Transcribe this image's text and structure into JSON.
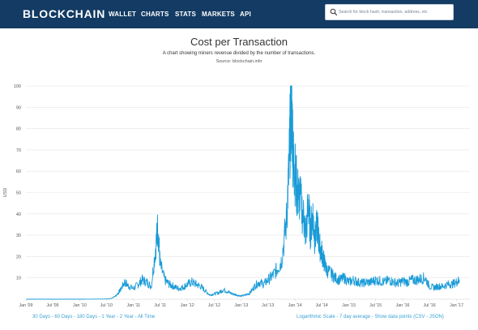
{
  "nav": {
    "brand": "BLOCKCHAIN",
    "items": [
      "WALLET",
      "CHARTS",
      "STATS",
      "MARKETS",
      "API"
    ],
    "search_placeholder": "Search for block hash, transaction, address, etc",
    "search_icon": "search-icon",
    "background_color": "#133b63"
  },
  "page": {
    "title": "Cost per Transaction",
    "subtitle": "A chart showing miners revenue divided by the number of transactions.",
    "source": "Source: blockchain.info"
  },
  "chart_data": {
    "type": "line",
    "ylabel": "USD",
    "xlabel": "",
    "ylim": [
      0,
      100
    ],
    "yticks": [
      "10",
      "20",
      "30",
      "40",
      "50",
      "60",
      "70",
      "80",
      "90",
      "100"
    ],
    "xticks": [
      "Jan '09",
      "Jul '09",
      "Jan '10",
      "Jul '10",
      "Jan '11",
      "Jul '11",
      "Jan '12",
      "Jul '12",
      "Jan '13",
      "Jul '13",
      "Jan '14",
      "Jul '14",
      "Jan '15",
      "Jul '15",
      "Jan '16",
      "Jul '16",
      "Jan '17"
    ],
    "series_color": "#1a9bd7",
    "grid": true,
    "series": [
      {
        "x": [
          "2009-01-03",
          "2009-07-01",
          "2010-01-01",
          "2010-07-01",
          "2010-08-01",
          "2010-09-01",
          "2010-10-01",
          "2010-11-01",
          "2010-12-01",
          "2011-01-01",
          "2011-02-01",
          "2011-03-01",
          "2011-04-01",
          "2011-05-01",
          "2011-06-01",
          "2011-06-15",
          "2011-07-01",
          "2011-08-01",
          "2011-09-01",
          "2011-10-01",
          "2011-11-01",
          "2011-12-01",
          "2012-01-01",
          "2012-02-01",
          "2012-03-01",
          "2012-04-01",
          "2012-05-01",
          "2012-06-01",
          "2012-07-01",
          "2012-08-01",
          "2012-09-01",
          "2012-10-01",
          "2012-11-01",
          "2012-12-01",
          "2013-01-01",
          "2013-02-01",
          "2013-03-01",
          "2013-04-01",
          "2013-05-01",
          "2013-06-01",
          "2013-07-01",
          "2013-08-01",
          "2013-09-01",
          "2013-10-01",
          "2013-11-01",
          "2013-11-20",
          "2013-12-01",
          "2013-12-10",
          "2013-12-20",
          "2014-01-01",
          "2014-01-15",
          "2014-02-01",
          "2014-03-01",
          "2014-03-15",
          "2014-04-01",
          "2014-04-15",
          "2014-05-01",
          "2014-05-15",
          "2014-06-01",
          "2014-06-15",
          "2014-07-01",
          "2014-07-15",
          "2014-08-01",
          "2014-09-01",
          "2014-10-01",
          "2014-11-01",
          "2014-12-01",
          "2015-01-01",
          "2015-02-01",
          "2015-03-01",
          "2015-04-01",
          "2015-05-01",
          "2015-06-01",
          "2015-07-01",
          "2015-08-01",
          "2015-09-01",
          "2015-10-01",
          "2015-11-01",
          "2015-12-01",
          "2016-01-01",
          "2016-02-01",
          "2016-03-01",
          "2016-04-01",
          "2016-05-01",
          "2016-06-01",
          "2016-07-01",
          "2016-08-01",
          "2016-09-01",
          "2016-10-01",
          "2016-11-01",
          "2016-12-01",
          "2017-01-01",
          "2017-01-20"
        ],
        "values": [
          0,
          0,
          0,
          0.1,
          0.3,
          1.5,
          4,
          8,
          6,
          5,
          7,
          9,
          8,
          6,
          25,
          34,
          16,
          9,
          7,
          6,
          5,
          5.5,
          7,
          8,
          7,
          6,
          4,
          2,
          2.5,
          3,
          4.5,
          3.5,
          2.5,
          2,
          1.5,
          2,
          3,
          6,
          8,
          7,
          9,
          11,
          14,
          18,
          35,
          60,
          85,
          90,
          65,
          60,
          50,
          48,
          38,
          30,
          45,
          32,
          40,
          28,
          35,
          25,
          22,
          18,
          14,
          12,
          10,
          9,
          10,
          8,
          9,
          8,
          7.5,
          8,
          8,
          9,
          8.5,
          8,
          9,
          8,
          7.5,
          8.5,
          8,
          9,
          9,
          9.5,
          10,
          6,
          5.5,
          6,
          6,
          7,
          7,
          8,
          9
        ]
      }
    ]
  },
  "footer": {
    "ranges": [
      "30 Days",
      "60 Days",
      "180 Days",
      "1 Year",
      "2 Year",
      "All Time"
    ],
    "options": [
      "Logarithmic Scale",
      "7 day average",
      "Show data points"
    ],
    "exports": [
      "CSV",
      "JSON"
    ]
  }
}
